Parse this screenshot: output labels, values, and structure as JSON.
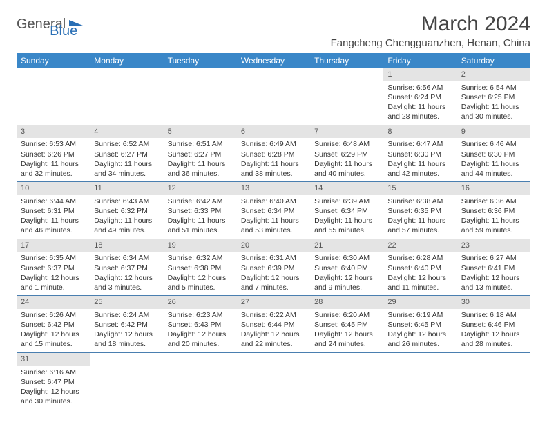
{
  "logo": {
    "part1": "General",
    "part2": "Blue"
  },
  "title": "March 2024",
  "location": "Fangcheng Chengguanzhen, Henan, China",
  "colors": {
    "header_bg": "#3a87c8",
    "header_fg": "#ffffff",
    "daynum_bg": "#e4e4e4",
    "rule": "#4a7fb0",
    "logo_accent": "#2a6fb5"
  },
  "weekdays": [
    "Sunday",
    "Monday",
    "Tuesday",
    "Wednesday",
    "Thursday",
    "Friday",
    "Saturday"
  ],
  "cells": [
    {
      "d": "",
      "sr": "",
      "ss": "",
      "dl": ""
    },
    {
      "d": "",
      "sr": "",
      "ss": "",
      "dl": ""
    },
    {
      "d": "",
      "sr": "",
      "ss": "",
      "dl": ""
    },
    {
      "d": "",
      "sr": "",
      "ss": "",
      "dl": ""
    },
    {
      "d": "",
      "sr": "",
      "ss": "",
      "dl": ""
    },
    {
      "d": "1",
      "sr": "Sunrise: 6:56 AM",
      "ss": "Sunset: 6:24 PM",
      "dl": "Daylight: 11 hours and 28 minutes."
    },
    {
      "d": "2",
      "sr": "Sunrise: 6:54 AM",
      "ss": "Sunset: 6:25 PM",
      "dl": "Daylight: 11 hours and 30 minutes."
    },
    {
      "d": "3",
      "sr": "Sunrise: 6:53 AM",
      "ss": "Sunset: 6:26 PM",
      "dl": "Daylight: 11 hours and 32 minutes."
    },
    {
      "d": "4",
      "sr": "Sunrise: 6:52 AM",
      "ss": "Sunset: 6:27 PM",
      "dl": "Daylight: 11 hours and 34 minutes."
    },
    {
      "d": "5",
      "sr": "Sunrise: 6:51 AM",
      "ss": "Sunset: 6:27 PM",
      "dl": "Daylight: 11 hours and 36 minutes."
    },
    {
      "d": "6",
      "sr": "Sunrise: 6:49 AM",
      "ss": "Sunset: 6:28 PM",
      "dl": "Daylight: 11 hours and 38 minutes."
    },
    {
      "d": "7",
      "sr": "Sunrise: 6:48 AM",
      "ss": "Sunset: 6:29 PM",
      "dl": "Daylight: 11 hours and 40 minutes."
    },
    {
      "d": "8",
      "sr": "Sunrise: 6:47 AM",
      "ss": "Sunset: 6:30 PM",
      "dl": "Daylight: 11 hours and 42 minutes."
    },
    {
      "d": "9",
      "sr": "Sunrise: 6:46 AM",
      "ss": "Sunset: 6:30 PM",
      "dl": "Daylight: 11 hours and 44 minutes."
    },
    {
      "d": "10",
      "sr": "Sunrise: 6:44 AM",
      "ss": "Sunset: 6:31 PM",
      "dl": "Daylight: 11 hours and 46 minutes."
    },
    {
      "d": "11",
      "sr": "Sunrise: 6:43 AM",
      "ss": "Sunset: 6:32 PM",
      "dl": "Daylight: 11 hours and 49 minutes."
    },
    {
      "d": "12",
      "sr": "Sunrise: 6:42 AM",
      "ss": "Sunset: 6:33 PM",
      "dl": "Daylight: 11 hours and 51 minutes."
    },
    {
      "d": "13",
      "sr": "Sunrise: 6:40 AM",
      "ss": "Sunset: 6:34 PM",
      "dl": "Daylight: 11 hours and 53 minutes."
    },
    {
      "d": "14",
      "sr": "Sunrise: 6:39 AM",
      "ss": "Sunset: 6:34 PM",
      "dl": "Daylight: 11 hours and 55 minutes."
    },
    {
      "d": "15",
      "sr": "Sunrise: 6:38 AM",
      "ss": "Sunset: 6:35 PM",
      "dl": "Daylight: 11 hours and 57 minutes."
    },
    {
      "d": "16",
      "sr": "Sunrise: 6:36 AM",
      "ss": "Sunset: 6:36 PM",
      "dl": "Daylight: 11 hours and 59 minutes."
    },
    {
      "d": "17",
      "sr": "Sunrise: 6:35 AM",
      "ss": "Sunset: 6:37 PM",
      "dl": "Daylight: 12 hours and 1 minute."
    },
    {
      "d": "18",
      "sr": "Sunrise: 6:34 AM",
      "ss": "Sunset: 6:37 PM",
      "dl": "Daylight: 12 hours and 3 minutes."
    },
    {
      "d": "19",
      "sr": "Sunrise: 6:32 AM",
      "ss": "Sunset: 6:38 PM",
      "dl": "Daylight: 12 hours and 5 minutes."
    },
    {
      "d": "20",
      "sr": "Sunrise: 6:31 AM",
      "ss": "Sunset: 6:39 PM",
      "dl": "Daylight: 12 hours and 7 minutes."
    },
    {
      "d": "21",
      "sr": "Sunrise: 6:30 AM",
      "ss": "Sunset: 6:40 PM",
      "dl": "Daylight: 12 hours and 9 minutes."
    },
    {
      "d": "22",
      "sr": "Sunrise: 6:28 AM",
      "ss": "Sunset: 6:40 PM",
      "dl": "Daylight: 12 hours and 11 minutes."
    },
    {
      "d": "23",
      "sr": "Sunrise: 6:27 AM",
      "ss": "Sunset: 6:41 PM",
      "dl": "Daylight: 12 hours and 13 minutes."
    },
    {
      "d": "24",
      "sr": "Sunrise: 6:26 AM",
      "ss": "Sunset: 6:42 PM",
      "dl": "Daylight: 12 hours and 15 minutes."
    },
    {
      "d": "25",
      "sr": "Sunrise: 6:24 AM",
      "ss": "Sunset: 6:42 PM",
      "dl": "Daylight: 12 hours and 18 minutes."
    },
    {
      "d": "26",
      "sr": "Sunrise: 6:23 AM",
      "ss": "Sunset: 6:43 PM",
      "dl": "Daylight: 12 hours and 20 minutes."
    },
    {
      "d": "27",
      "sr": "Sunrise: 6:22 AM",
      "ss": "Sunset: 6:44 PM",
      "dl": "Daylight: 12 hours and 22 minutes."
    },
    {
      "d": "28",
      "sr": "Sunrise: 6:20 AM",
      "ss": "Sunset: 6:45 PM",
      "dl": "Daylight: 12 hours and 24 minutes."
    },
    {
      "d": "29",
      "sr": "Sunrise: 6:19 AM",
      "ss": "Sunset: 6:45 PM",
      "dl": "Daylight: 12 hours and 26 minutes."
    },
    {
      "d": "30",
      "sr": "Sunrise: 6:18 AM",
      "ss": "Sunset: 6:46 PM",
      "dl": "Daylight: 12 hours and 28 minutes."
    },
    {
      "d": "31",
      "sr": "Sunrise: 6:16 AM",
      "ss": "Sunset: 6:47 PM",
      "dl": "Daylight: 12 hours and 30 minutes."
    },
    {
      "d": "",
      "sr": "",
      "ss": "",
      "dl": ""
    },
    {
      "d": "",
      "sr": "",
      "ss": "",
      "dl": ""
    },
    {
      "d": "",
      "sr": "",
      "ss": "",
      "dl": ""
    },
    {
      "d": "",
      "sr": "",
      "ss": "",
      "dl": ""
    },
    {
      "d": "",
      "sr": "",
      "ss": "",
      "dl": ""
    },
    {
      "d": "",
      "sr": "",
      "ss": "",
      "dl": ""
    }
  ]
}
